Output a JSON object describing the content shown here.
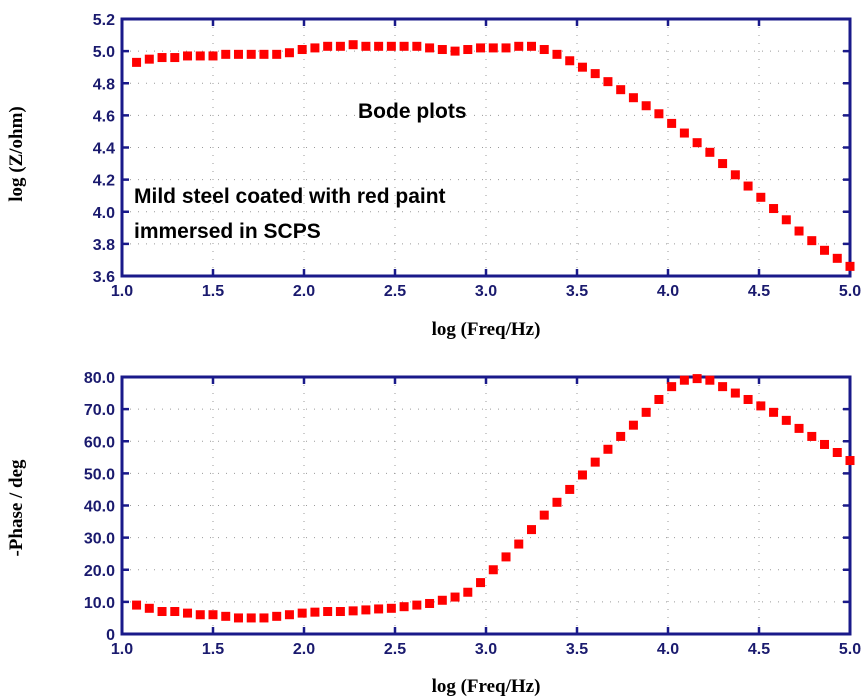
{
  "colors": {
    "frame": "#1a1a8a",
    "marker": "#ff0000",
    "grid": "#9a9a9a",
    "tick_text": "#1a1a6e"
  },
  "chart_data": [
    {
      "type": "scatter",
      "xlabel": "log (Freq/Hz)",
      "ylabel": "log (Z/ohm)",
      "xlim": [
        1.0,
        5.0
      ],
      "ylim": [
        3.6,
        5.2
      ],
      "grid": true,
      "x_ticks": [
        "1.0",
        "1.5",
        "2.0",
        "2.5",
        "3.0",
        "3.5",
        "4.0",
        "4.5",
        "5.0"
      ],
      "y_ticks": [
        "3.6",
        "3.8",
        "4.0",
        "4.2",
        "4.4",
        "4.6",
        "4.8",
        "5.0",
        "5.2"
      ],
      "annotations": [
        "Bode plots",
        "Mild steel coated with red paint",
        "immersed in SCPS"
      ],
      "series": [
        {
          "x": [
            1.08,
            1.15,
            1.22,
            1.29,
            1.36,
            1.43,
            1.5,
            1.57,
            1.64,
            1.71,
            1.78,
            1.85,
            1.92,
            1.99,
            2.06,
            2.13,
            2.2,
            2.27,
            2.34,
            2.41,
            2.48,
            2.55,
            2.62,
            2.69,
            2.76,
            2.83,
            2.9,
            2.97,
            3.04,
            3.11,
            3.18,
            3.25,
            3.32,
            3.39,
            3.46,
            3.53,
            3.6,
            3.67,
            3.74,
            3.81,
            3.88,
            3.95,
            4.02,
            4.09,
            4.16,
            4.23,
            4.3,
            4.37,
            4.44,
            4.51,
            4.58,
            4.65,
            4.72,
            4.79,
            4.86,
            4.93,
            5.0
          ],
          "y": [
            4.93,
            4.95,
            4.96,
            4.96,
            4.97,
            4.97,
            4.97,
            4.98,
            4.98,
            4.98,
            4.98,
            4.98,
            4.99,
            5.01,
            5.02,
            5.03,
            5.03,
            5.04,
            5.03,
            5.03,
            5.03,
            5.03,
            5.03,
            5.02,
            5.01,
            5.0,
            5.01,
            5.02,
            5.02,
            5.02,
            5.03,
            5.03,
            5.01,
            4.98,
            4.94,
            4.9,
            4.86,
            4.81,
            4.76,
            4.71,
            4.66,
            4.61,
            4.55,
            4.49,
            4.43,
            4.37,
            4.3,
            4.23,
            4.16,
            4.09,
            4.02,
            3.95,
            3.88,
            3.82,
            3.76,
            3.71,
            3.66
          ]
        }
      ]
    },
    {
      "type": "scatter",
      "xlabel": "log (Freq/Hz)",
      "ylabel": "-Phase / deg",
      "xlim": [
        1.0,
        5.0
      ],
      "ylim": [
        0,
        80.0
      ],
      "grid": true,
      "x_ticks": [
        "1.0",
        "1.5",
        "2.0",
        "2.5",
        "3.0",
        "3.5",
        "4.0",
        "4.5",
        "5.0"
      ],
      "y_ticks": [
        "0",
        "10.0",
        "20.0",
        "30.0",
        "40.0",
        "50.0",
        "60.0",
        "70.0",
        "80.0"
      ],
      "series": [
        {
          "x": [
            1.08,
            1.15,
            1.22,
            1.29,
            1.36,
            1.43,
            1.5,
            1.57,
            1.64,
            1.71,
            1.78,
            1.85,
            1.92,
            1.99,
            2.06,
            2.13,
            2.2,
            2.27,
            2.34,
            2.41,
            2.48,
            2.55,
            2.62,
            2.69,
            2.76,
            2.83,
            2.9,
            2.97,
            3.04,
            3.11,
            3.18,
            3.25,
            3.32,
            3.39,
            3.46,
            3.53,
            3.6,
            3.67,
            3.74,
            3.81,
            3.88,
            3.95,
            4.02,
            4.09,
            4.16,
            4.23,
            4.3,
            4.37,
            4.44,
            4.51,
            4.58,
            4.65,
            4.72,
            4.79,
            4.86,
            4.93,
            5.0
          ],
          "y": [
            9,
            8,
            7,
            7,
            6.5,
            6,
            6,
            5.5,
            5,
            5,
            5,
            5.5,
            6,
            6.5,
            6.8,
            7,
            7,
            7.2,
            7.5,
            7.8,
            8,
            8.5,
            9,
            9.5,
            10.5,
            11.5,
            13,
            16,
            20,
            24,
            28,
            32.5,
            37,
            41,
            45,
            49.5,
            53.5,
            57.5,
            61.5,
            65,
            69,
            73,
            77,
            79,
            79.5,
            79,
            77,
            75,
            73,
            71,
            69,
            66.5,
            64,
            61.5,
            59,
            56.5,
            54
          ]
        }
      ]
    }
  ]
}
